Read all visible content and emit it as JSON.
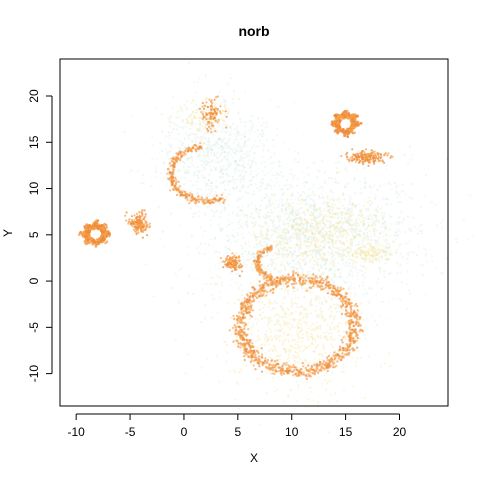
{
  "chart_data": {
    "type": "scatter",
    "title": "norb",
    "xlabel": "X",
    "ylabel": "Y",
    "xlim": [
      -11.5,
      24.5
    ],
    "ylim": [
      -13.5,
      24
    ],
    "xticks": [
      -10,
      -5,
      0,
      5,
      10,
      15,
      20
    ],
    "yticks": [
      -10,
      -5,
      0,
      5,
      10,
      15,
      20
    ],
    "grid": false,
    "colors": {
      "density_high": "#ffffff",
      "density_mid_high": "#f7a34a",
      "density_mid": "#ee8a3c",
      "density_low_mid": "#f5e6a0",
      "density_low": "#cfe8d5",
      "density_faint": "#dfeef0"
    },
    "clusters": [
      {
        "shape": "ring",
        "cx": 10.5,
        "cy": -4.8,
        "rx": 5.3,
        "ry": 5.0,
        "n": 1000,
        "spread": 0.35,
        "dense": true
      },
      {
        "shape": "blob",
        "cx": 10.5,
        "cy": -5.5,
        "sx": 3.2,
        "sy": 3.0,
        "n": 650,
        "tone": "yellow"
      },
      {
        "shape": "arc",
        "cx": 2.2,
        "cy": 11.6,
        "rx": 3.4,
        "ry": 3.0,
        "start": 100,
        "end": 300,
        "n": 260,
        "spread": 0.2
      },
      {
        "shape": "star",
        "cx": 15.0,
        "cy": 17.0,
        "r": 0.9,
        "n": 320
      },
      {
        "shape": "star",
        "cx": -8.2,
        "cy": 5.1,
        "r": 0.9,
        "n": 380
      },
      {
        "shape": "blob",
        "cx": 17.0,
        "cy": 13.4,
        "sx": 0.9,
        "sy": 0.35,
        "n": 180,
        "tone": "orange"
      },
      {
        "shape": "blob",
        "cx": -4.2,
        "cy": 6.3,
        "sx": 0.45,
        "sy": 0.55,
        "n": 160,
        "tone": "orange"
      },
      {
        "shape": "blob",
        "cx": 4.5,
        "cy": 2.0,
        "sx": 0.45,
        "sy": 0.45,
        "n": 110,
        "tone": "orange"
      },
      {
        "shape": "arc",
        "cx": 8.5,
        "cy": 2.0,
        "rx": 1.7,
        "ry": 1.6,
        "start": 100,
        "end": 260,
        "n": 120,
        "spread": 0.15
      },
      {
        "shape": "blob",
        "cx": 2.7,
        "cy": 18.2,
        "sx": 0.5,
        "sy": 0.8,
        "n": 90,
        "tone": "orange"
      },
      {
        "shape": "blob",
        "cx": 3.2,
        "cy": 13.8,
        "sx": 2.8,
        "sy": 2.8,
        "n": 750,
        "tone": "faint"
      },
      {
        "shape": "blob",
        "cx": 12.0,
        "cy": 4.8,
        "sx": 5.0,
        "sy": 3.5,
        "n": 1700,
        "tone": "faint"
      },
      {
        "shape": "blob",
        "cx": 12.5,
        "cy": 5.2,
        "sx": 3.0,
        "sy": 2.0,
        "n": 500,
        "tone": "yellow"
      },
      {
        "shape": "blob",
        "cx": 17.5,
        "cy": 2.9,
        "sx": 0.9,
        "sy": 0.5,
        "n": 120,
        "tone": "yellow"
      },
      {
        "shape": "blob",
        "cx": 2.0,
        "cy": 17.8,
        "sx": 1.2,
        "sy": 1.0,
        "n": 120,
        "tone": "yellow"
      }
    ]
  }
}
